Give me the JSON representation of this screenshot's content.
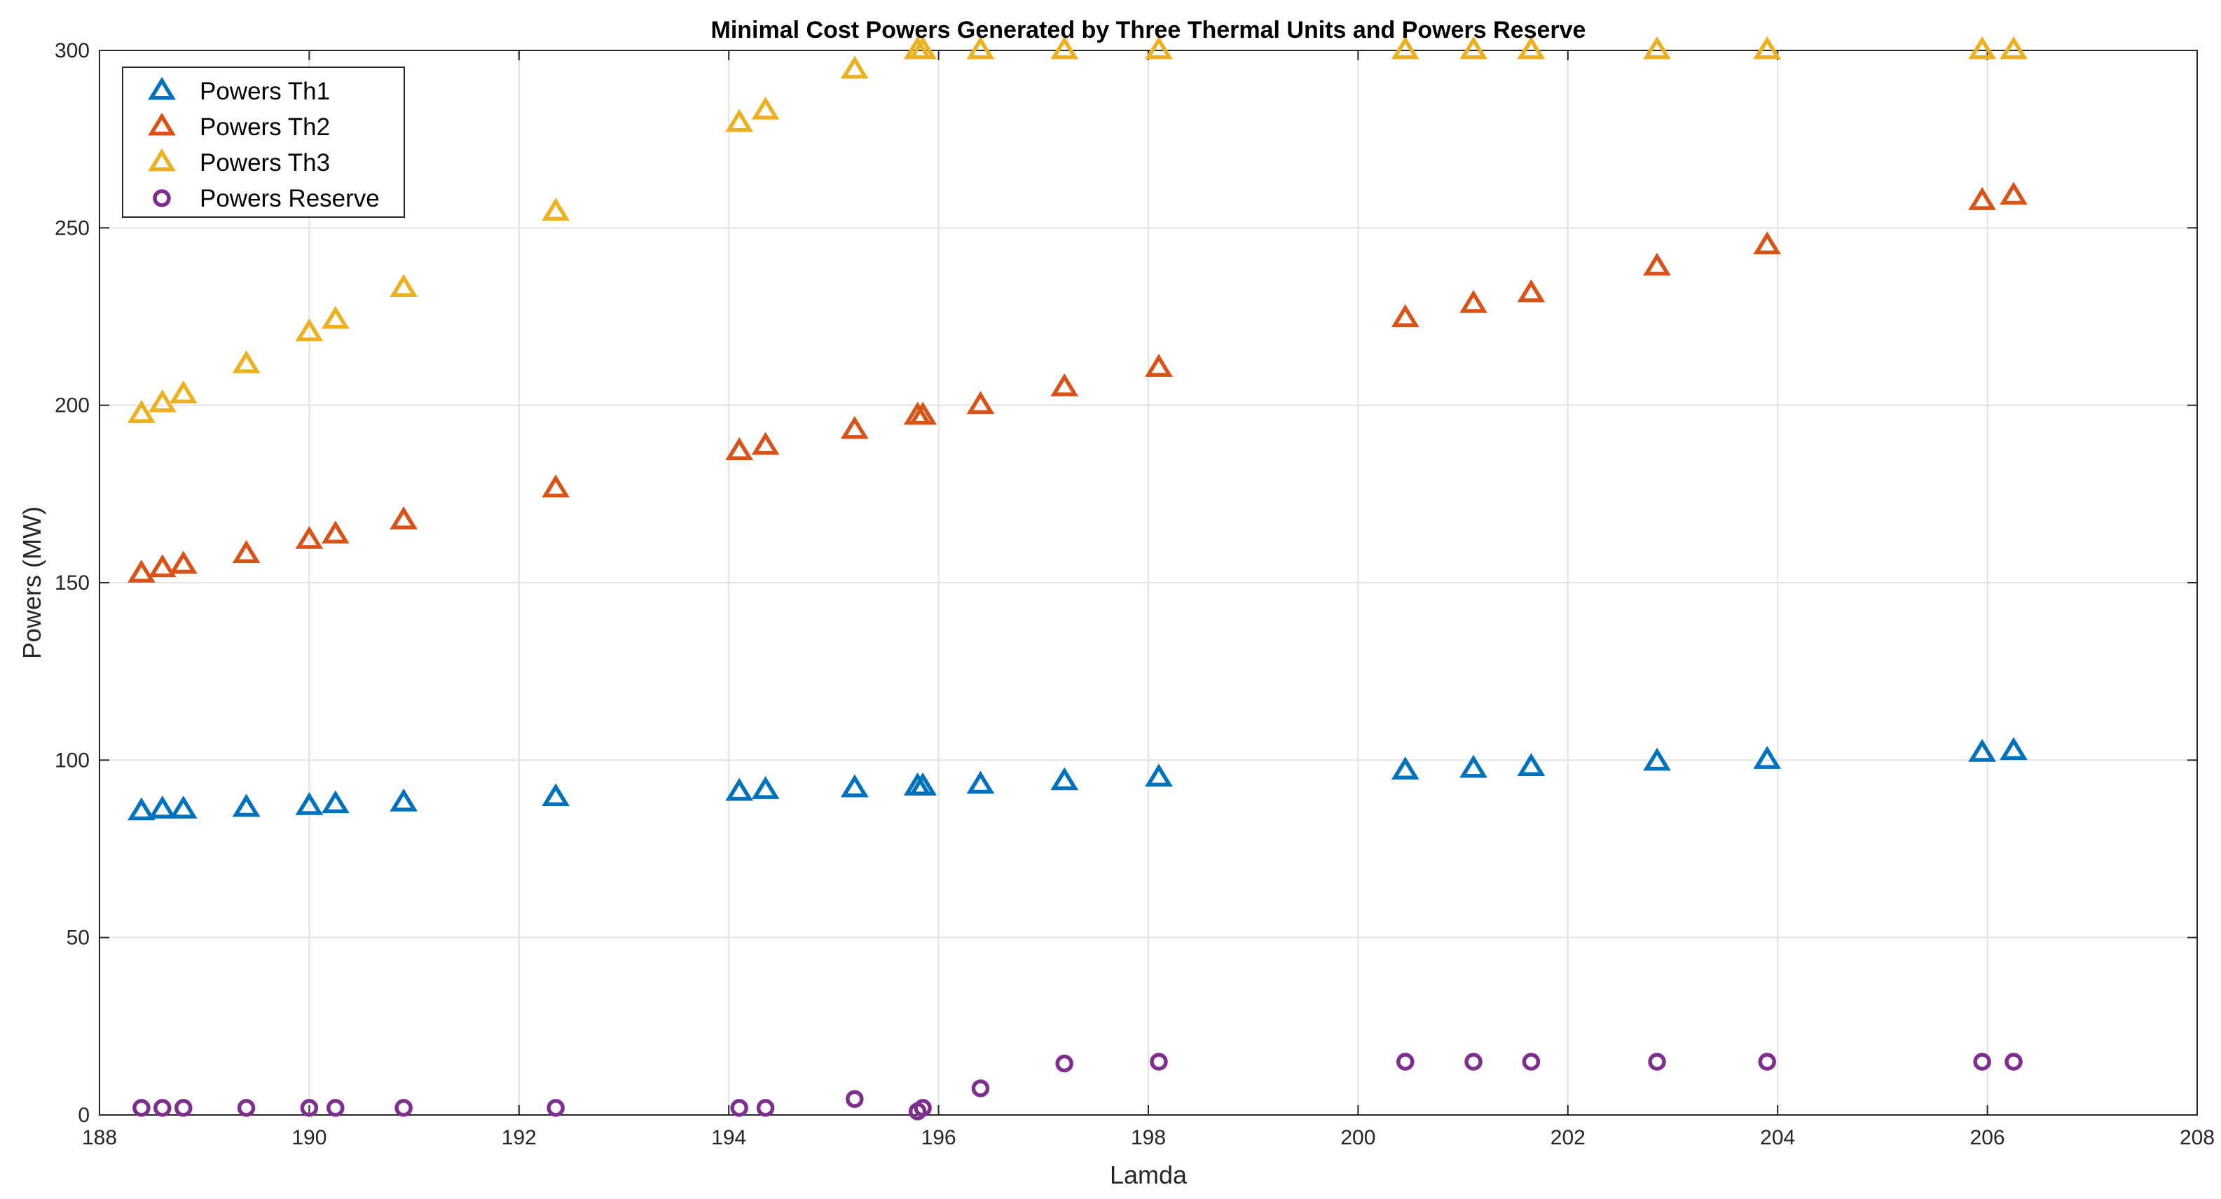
{
  "chart_data": {
    "type": "scatter",
    "title": "Minimal Cost Powers Generated by Three Thermal Units and Powers Reserve",
    "xlabel": "Lamda",
    "ylabel": "Powers (MW)",
    "xlim": [
      188,
      208
    ],
    "ylim": [
      0,
      300
    ],
    "xticks": [
      188,
      190,
      192,
      194,
      196,
      198,
      200,
      202,
      204,
      206,
      208
    ],
    "yticks": [
      0,
      50,
      100,
      150,
      200,
      250,
      300
    ],
    "grid": true,
    "legend_position": "top-left",
    "x": [
      188.4,
      188.6,
      188.8,
      189.4,
      190.0,
      190.25,
      190.9,
      192.35,
      194.1,
      194.35,
      195.2,
      195.8,
      195.85,
      196.4,
      197.2,
      198.1,
      200.45,
      201.1,
      201.65,
      202.85,
      203.9,
      205.95,
      206.25
    ],
    "series": [
      {
        "name": "Powers Th1",
        "marker": "triangle",
        "color": "#0072BD",
        "values": [
          85.5,
          86,
          86,
          86.5,
          87,
          87.5,
          88,
          89.5,
          91,
          91.5,
          92,
          92.5,
          92.5,
          93,
          94,
          95,
          97,
          97.5,
          98,
          99.5,
          100,
          102,
          102.5
        ]
      },
      {
        "name": "Powers Th2",
        "marker": "triangle",
        "color": "#D95319",
        "values": [
          152.5,
          154,
          155,
          158,
          162,
          163.5,
          167.5,
          176.5,
          187,
          188.5,
          193,
          197,
          197,
          200,
          205,
          210.5,
          224.5,
          228.5,
          231.5,
          239,
          245,
          257.5,
          259
        ]
      },
      {
        "name": "Powers Th3",
        "marker": "triangle",
        "color": "#EDB120",
        "values": [
          197.5,
          200.5,
          203,
          211.5,
          220.5,
          224,
          233,
          254.5,
          279.5,
          283,
          294.5,
          300,
          300,
          300,
          300,
          300,
          300,
          300,
          300,
          300,
          300,
          300,
          300
        ]
      },
      {
        "name": "Powers Reserve",
        "marker": "circle",
        "color": "#7E2F8E",
        "values": [
          2,
          2,
          2,
          2,
          2,
          2,
          2,
          2,
          2,
          2,
          4.5,
          1,
          2,
          7.5,
          14.5,
          15,
          15,
          15,
          15,
          15,
          15,
          15,
          15
        ]
      }
    ]
  }
}
